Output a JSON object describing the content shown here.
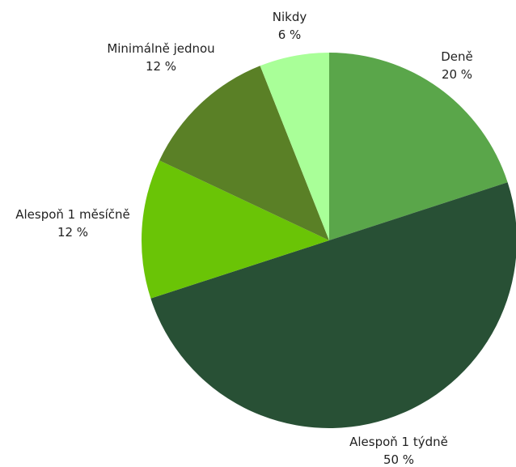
{
  "chart_data": {
    "type": "pie",
    "title": "",
    "start_angle_deg": 0,
    "direction": "clockwise",
    "legend": "none",
    "slices": [
      {
        "label": "Deně",
        "value": 20,
        "value_label": "20 %",
        "color": "#5aa64a"
      },
      {
        "label": "Alespoň 1 týdně",
        "value": 50,
        "value_label": "50 %",
        "color": "#285035"
      },
      {
        "label": "Alespoň 1 měsíčně",
        "value": 12,
        "value_label": "12 %",
        "color": "#6ac406"
      },
      {
        "label": "Minimálně jednou",
        "value": 12,
        "value_label": "12 %",
        "color": "#5a8026"
      },
      {
        "label": "Nikdy",
        "value": 6,
        "value_label": "6 %",
        "color": "#a9ff98"
      }
    ]
  }
}
